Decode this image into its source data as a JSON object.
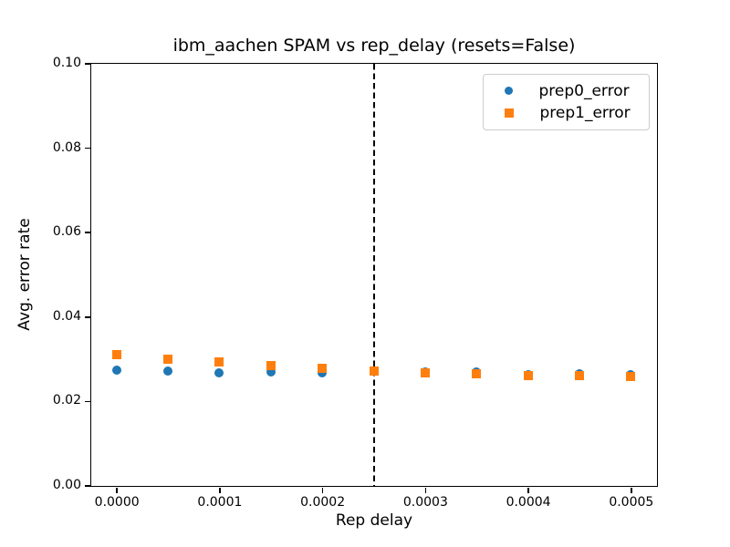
{
  "chart_data": {
    "type": "scatter",
    "title": "ibm_aachen SPAM vs rep_delay (resets=False)",
    "xlabel": "Rep delay",
    "ylabel": "Avg. error rate",
    "xlim": [
      -2.5e-05,
      0.000525
    ],
    "ylim": [
      0.0,
      0.1
    ],
    "grid": false,
    "x_ticks": {
      "values": [
        0.0,
        0.0001,
        0.0002,
        0.0003,
        0.0004,
        0.0005
      ],
      "labels": [
        "0.0000",
        "0.0001",
        "0.0002",
        "0.0003",
        "0.0004",
        "0.0005"
      ]
    },
    "y_ticks": {
      "values": [
        0.0,
        0.02,
        0.04,
        0.06,
        0.08,
        0.1
      ],
      "labels": [
        "0.00",
        "0.02",
        "0.04",
        "0.06",
        "0.08",
        "0.10"
      ]
    },
    "x": [
      0.0,
      5e-05,
      0.0001,
      0.00015,
      0.0002,
      0.00025,
      0.0003,
      0.00035,
      0.0004,
      0.00045,
      0.0005
    ],
    "series": [
      {
        "name": "prep0_error",
        "marker": "circle",
        "color": "#1f77b4",
        "values": [
          0.0274,
          0.0272,
          0.0267,
          0.0269,
          0.0266,
          0.0272,
          0.0268,
          0.0268,
          0.0262,
          0.0265,
          0.0263
        ]
      },
      {
        "name": "prep1_error",
        "marker": "square",
        "color": "#ff7f0e",
        "values": [
          0.0311,
          0.0299,
          0.0292,
          0.0284,
          0.0278,
          0.0272,
          0.0267,
          0.0264,
          0.0261,
          0.026,
          0.0258
        ]
      }
    ],
    "vline": {
      "x": 0.00025,
      "style": "dashed",
      "color": "#000000"
    },
    "legend": {
      "position": "upper right",
      "entries": [
        "prep0_error",
        "prep1_error"
      ]
    }
  }
}
